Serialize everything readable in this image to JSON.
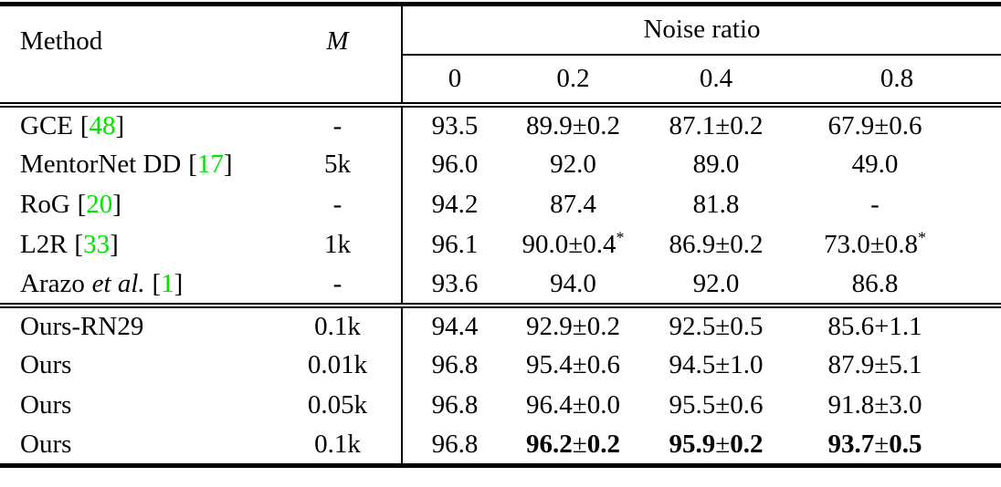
{
  "table": {
    "colors": {
      "text": "#000000",
      "background": "#ffffff",
      "citation_link": "#00e400",
      "rules": "#000000"
    },
    "header": {
      "method": "Method",
      "m": "M",
      "group": "Noise ratio",
      "noise_levels": [
        "0",
        "0.2",
        "0.4",
        "0.8"
      ]
    },
    "sections": [
      {
        "rows": [
          {
            "name": "GCE",
            "cite_open": "[",
            "cite": "48",
            "cite_close": "]",
            "m": "-",
            "cells": [
              "93.5",
              "89.9±0.2",
              "87.1±0.2",
              "67.9±0.6"
            ]
          },
          {
            "name": "MentorNet DD",
            "cite_open": "[",
            "cite": "17",
            "cite_close": "]",
            "m": "5k",
            "cells": [
              "96.0",
              "92.0",
              "89.0",
              "49.0"
            ]
          },
          {
            "name": "RoG",
            "cite_open": "[",
            "cite": "20",
            "cite_close": "]",
            "m": "-",
            "cells": [
              "94.2",
              "87.4",
              "81.8",
              "-"
            ]
          },
          {
            "name": "L2R",
            "cite_open": "[",
            "cite": "33",
            "cite_close": "]",
            "m": "1k",
            "cells": [
              "96.1",
              "90.0±0.4",
              "86.9±0.2",
              "73.0±0.8"
            ],
            "sups": {
              "1": "*",
              "3": "*"
            }
          },
          {
            "name": "Arazo",
            "name_italic": "et al.",
            "cite_open": "[",
            "cite": "1",
            "cite_close": "]",
            "m": "-",
            "cells": [
              "93.6",
              "94.0",
              "92.0",
              "86.8"
            ]
          }
        ]
      },
      {
        "rows": [
          {
            "name": "Ours-RN29",
            "m": "0.1k",
            "cells": [
              "94.4",
              "92.9±0.2",
              "92.5±0.5",
              "85.6+1.1"
            ]
          },
          {
            "name": "Ours",
            "m": "0.01k",
            "cells": [
              "96.8",
              "95.4±0.6",
              "94.5±1.0",
              "87.9±5.1"
            ]
          },
          {
            "name": "Ours",
            "m": "0.05k",
            "cells": [
              "96.8",
              "96.4±0.0",
              "95.5±0.6",
              "91.8±3.0"
            ]
          },
          {
            "name": "Ours",
            "m": "0.1k",
            "cells": [
              "96.8",
              {
                "lead": "96.2",
                "sign": "±",
                "trail": "0.2"
              },
              {
                "lead": "95.9",
                "sign": "±",
                "trail": "0.2"
              },
              {
                "lead": "93.7",
                "sign": "±",
                "trail": "0.5"
              }
            ]
          }
        ]
      }
    ]
  }
}
